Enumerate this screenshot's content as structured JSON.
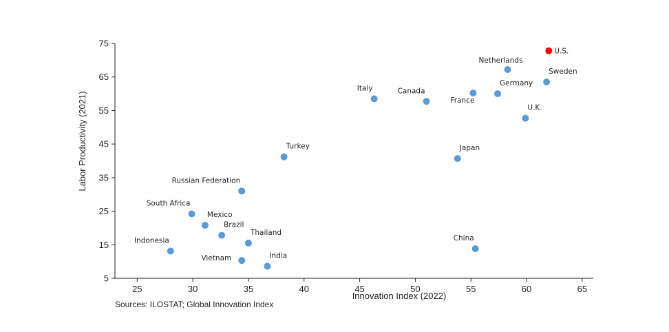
{
  "chart_data": {
    "type": "scatter",
    "xlabel": "Innovation Index (2022)",
    "ylabel": "Labor Productivity (2021)",
    "xlim": [
      23,
      66
    ],
    "ylim": [
      5,
      75
    ],
    "xticks": [
      25,
      30,
      35,
      40,
      45,
      50,
      55,
      60,
      65
    ],
    "yticks": [
      5,
      15,
      25,
      35,
      45,
      55,
      65,
      75
    ],
    "grid": false,
    "default_color": "#5b9bd5",
    "highlight_color": "#ff0000",
    "points": [
      {
        "label": "U.S.",
        "x": 62.0,
        "y": 72.8,
        "highlight": true,
        "anchor": "right"
      },
      {
        "label": "Netherlands",
        "x": 58.3,
        "y": 67.2,
        "anchor": "above"
      },
      {
        "label": "Sweden",
        "x": 61.8,
        "y": 63.5,
        "anchor": "above-right"
      },
      {
        "label": "Germany",
        "x": 57.4,
        "y": 60.0,
        "anchor": "above-right"
      },
      {
        "label": "France",
        "x": 55.2,
        "y": 60.2,
        "anchor": "below-left"
      },
      {
        "label": "Canada",
        "x": 51.0,
        "y": 57.7,
        "anchor": "above-left"
      },
      {
        "label": "Italy",
        "x": 46.3,
        "y": 58.5,
        "anchor": "above-left"
      },
      {
        "label": "U.K.",
        "x": 59.9,
        "y": 52.7,
        "anchor": "above-right"
      },
      {
        "label": "Japan",
        "x": 53.8,
        "y": 40.7,
        "anchor": "above-right"
      },
      {
        "label": "Turkey",
        "x": 38.2,
        "y": 41.2,
        "anchor": "above-right"
      },
      {
        "label": "Russian Federation",
        "x": 34.4,
        "y": 31.0,
        "anchor": "above-left"
      },
      {
        "label": "South Africa",
        "x": 29.9,
        "y": 24.2,
        "anchor": "above-left"
      },
      {
        "label": "Mexico",
        "x": 31.1,
        "y": 20.8,
        "anchor": "above-right"
      },
      {
        "label": "Brazil",
        "x": 32.6,
        "y": 17.8,
        "anchor": "above-right"
      },
      {
        "label": "Thailand",
        "x": 35.0,
        "y": 15.5,
        "anchor": "above-right"
      },
      {
        "label": "Indonesia",
        "x": 28.0,
        "y": 13.1,
        "anchor": "above-left"
      },
      {
        "label": "Vietnam",
        "x": 34.4,
        "y": 10.3,
        "anchor": "left"
      },
      {
        "label": "India",
        "x": 36.7,
        "y": 8.6,
        "anchor": "above-right"
      },
      {
        "label": "China",
        "x": 55.4,
        "y": 13.8,
        "anchor": "above-left"
      }
    ]
  },
  "source": "Sources: ILOSTAT; Global Innovation Index"
}
